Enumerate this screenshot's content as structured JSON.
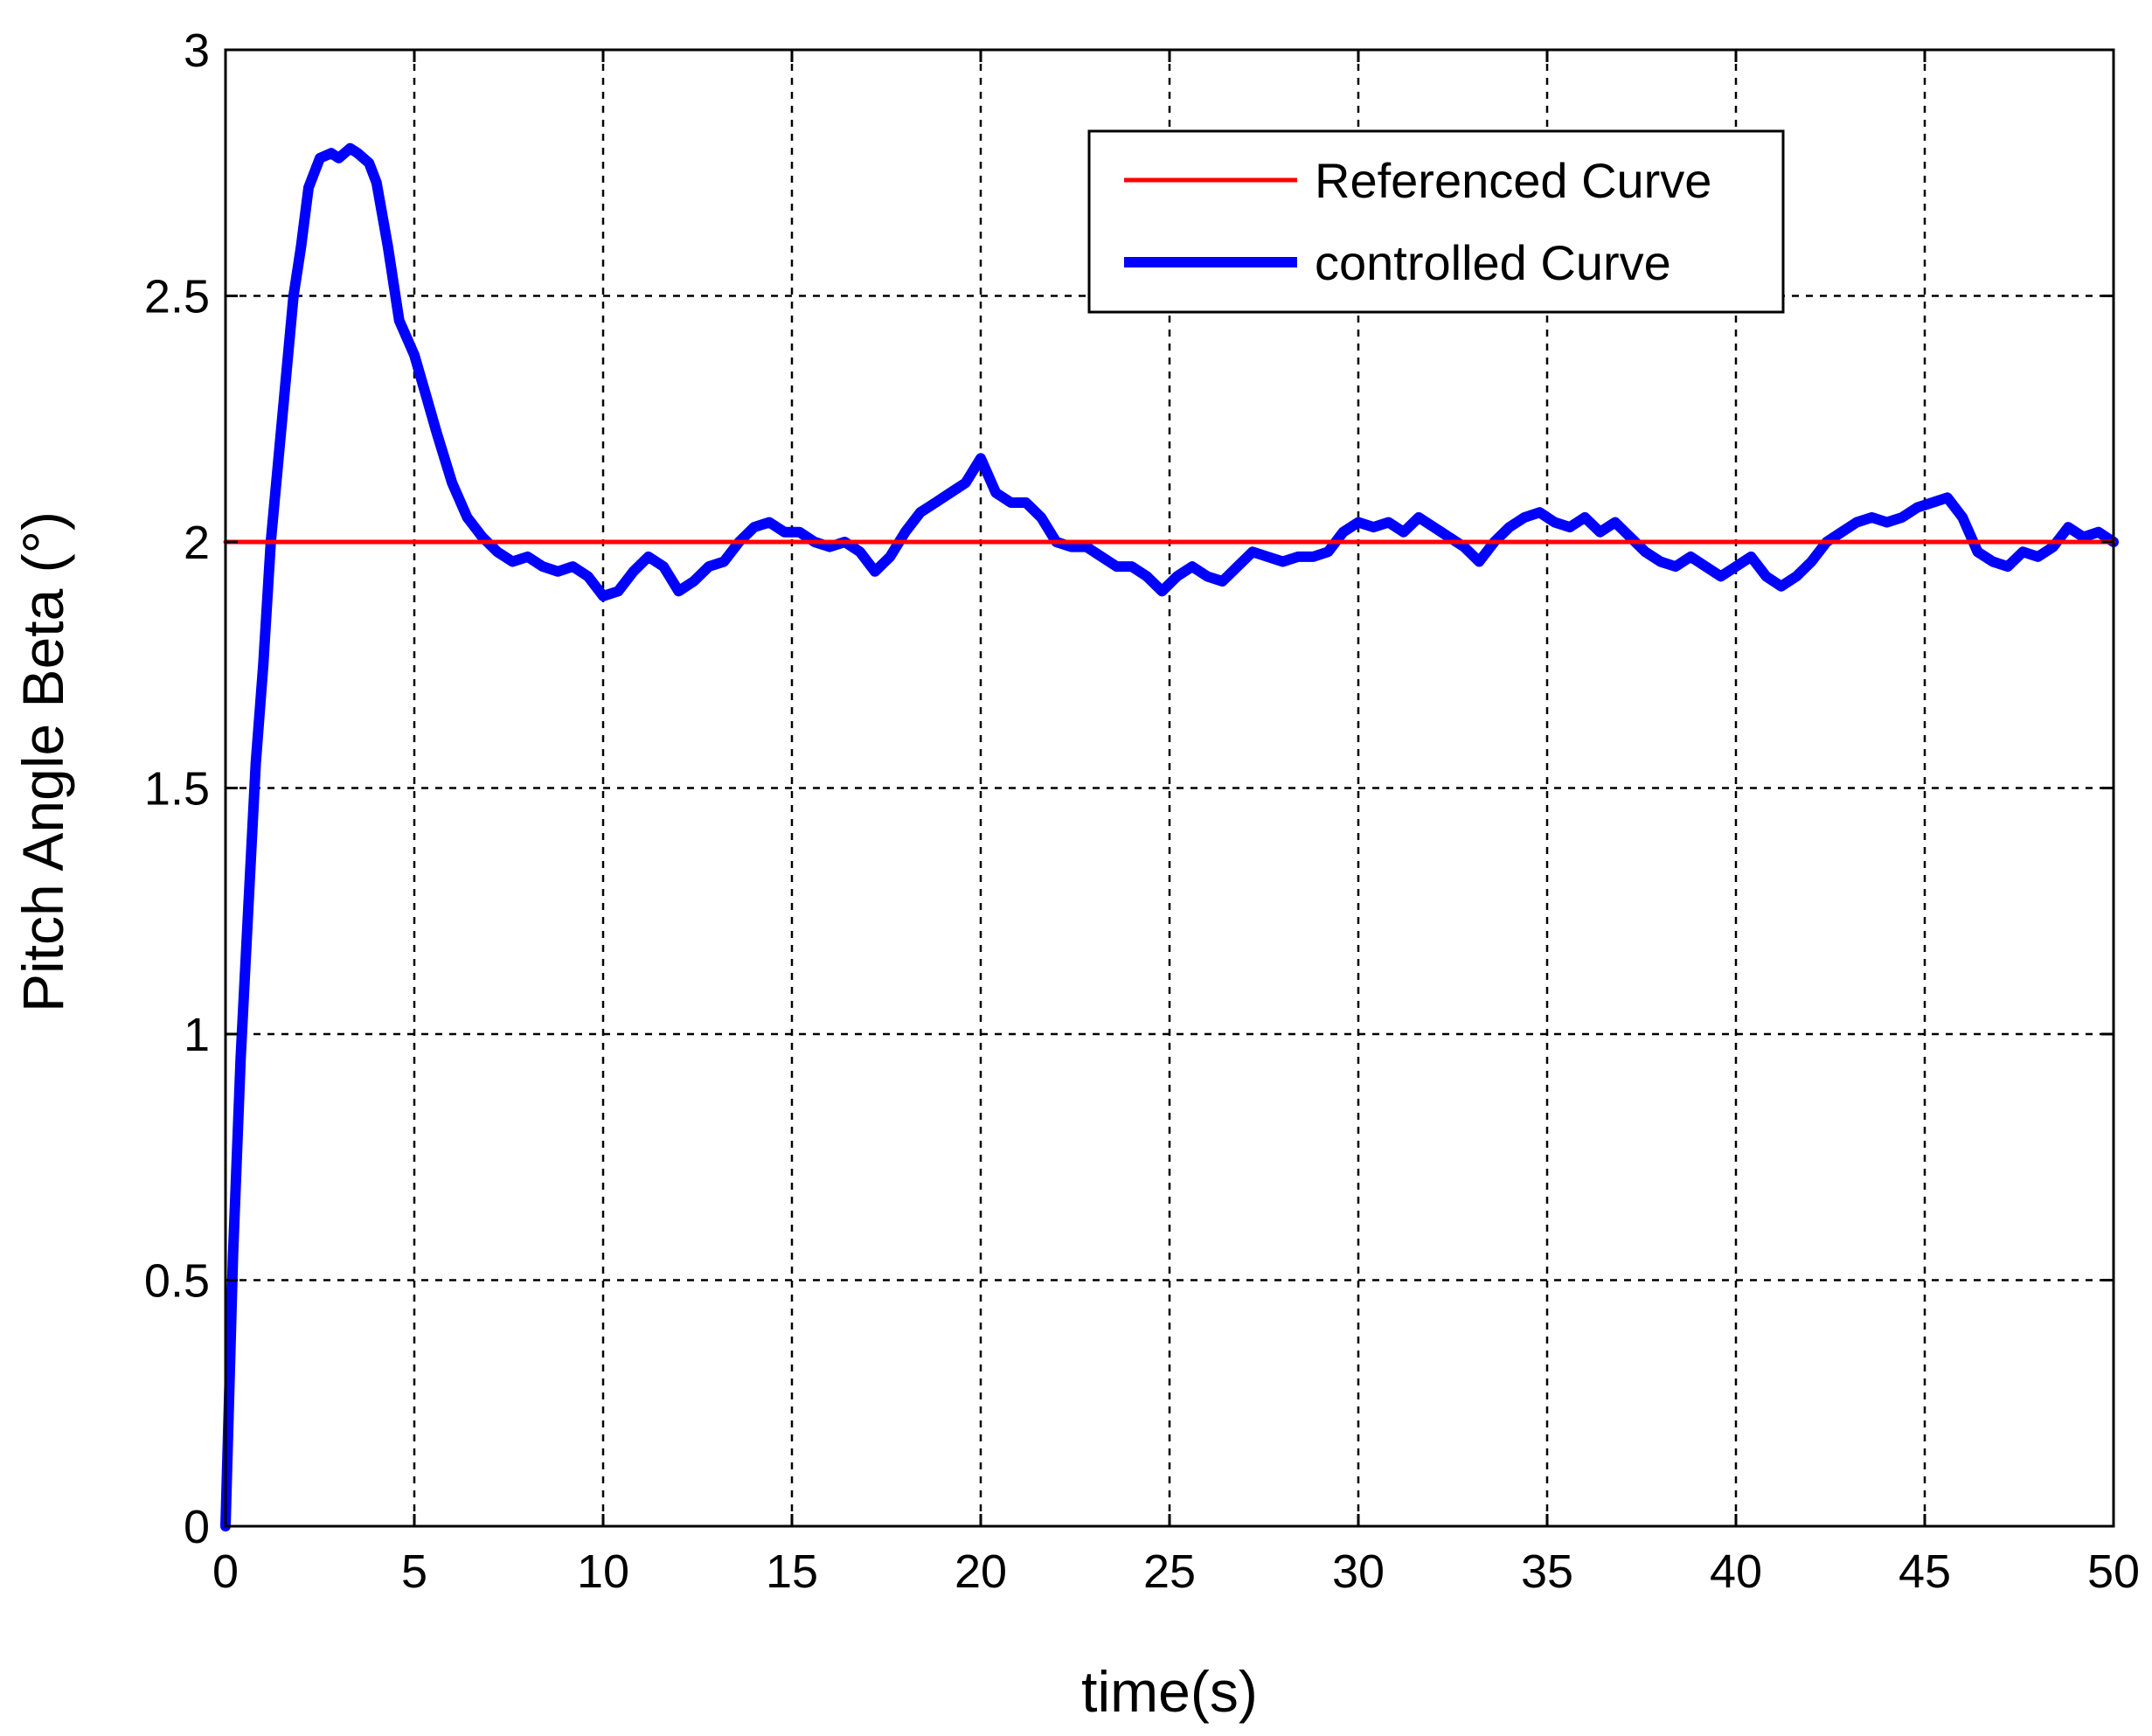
{
  "chart_data": {
    "type": "line",
    "xlabel": "time(s)",
    "ylabel": "Pitch Angle Beta (°)",
    "xlim": [
      0,
      50
    ],
    "ylim": [
      0,
      3
    ],
    "xticks": [
      "0",
      "5",
      "10",
      "15",
      "20",
      "25",
      "30",
      "35",
      "40",
      "45",
      "50"
    ],
    "yticks": [
      "0",
      "0.5",
      "1",
      "1.5",
      "2",
      "2.5",
      "3"
    ],
    "grid": true,
    "legend_position": "top-right",
    "series": [
      {
        "name": "Referenced Curve",
        "color": "#ff0000",
        "x": [
          0,
          50
        ],
        "y": [
          2.0,
          2.0
        ]
      },
      {
        "name": "controlled Curve",
        "color": "#0000ff",
        "x": [
          0,
          0.2,
          0.4,
          0.6,
          0.8,
          1.0,
          1.2,
          1.5,
          1.8,
          2.0,
          2.2,
          2.5,
          2.8,
          3.0,
          3.3,
          3.5,
          3.8,
          4.0,
          4.3,
          4.6,
          5.0,
          5.3,
          5.6,
          6.0,
          6.4,
          6.8,
          7.2,
          7.6,
          8.0,
          8.4,
          8.8,
          9.2,
          9.6,
          10.0,
          10.4,
          10.8,
          11.2,
          11.6,
          12.0,
          12.4,
          12.8,
          13.2,
          13.6,
          14.0,
          14.4,
          14.8,
          15.2,
          15.6,
          16.0,
          16.4,
          16.8,
          17.2,
          17.6,
          18.0,
          18.4,
          18.8,
          19.2,
          19.6,
          20.0,
          20.4,
          20.8,
          21.2,
          21.6,
          22.0,
          22.4,
          22.8,
          23.2,
          23.6,
          24.0,
          24.4,
          24.8,
          25.2,
          25.6,
          26.0,
          26.4,
          26.8,
          27.2,
          27.6,
          28.0,
          28.4,
          28.8,
          29.2,
          29.6,
          30.0,
          30.4,
          30.8,
          31.2,
          31.6,
          32.0,
          32.4,
          32.8,
          33.2,
          33.6,
          34.0,
          34.4,
          34.8,
          35.2,
          35.6,
          36.0,
          36.4,
          36.8,
          37.2,
          37.6,
          38.0,
          38.4,
          38.8,
          39.2,
          39.6,
          40.0,
          40.4,
          40.8,
          41.2,
          41.6,
          42.0,
          42.4,
          42.8,
          43.2,
          43.6,
          44.0,
          44.4,
          44.8,
          45.2,
          45.6,
          46.0,
          46.4,
          46.8,
          47.2,
          47.6,
          48.0,
          48.4,
          48.8,
          49.2,
          49.6,
          50.0
        ],
        "y": [
          0.0,
          0.55,
          0.95,
          1.25,
          1.55,
          1.75,
          2.0,
          2.25,
          2.5,
          2.6,
          2.72,
          2.78,
          2.79,
          2.78,
          2.8,
          2.79,
          2.77,
          2.73,
          2.6,
          2.45,
          2.38,
          2.3,
          2.22,
          2.12,
          2.05,
          2.01,
          1.98,
          1.96,
          1.97,
          1.95,
          1.94,
          1.95,
          1.93,
          1.89,
          1.9,
          1.94,
          1.97,
          1.95,
          1.9,
          1.92,
          1.95,
          1.96,
          2.0,
          2.03,
          2.04,
          2.02,
          2.02,
          2.0,
          1.99,
          2.0,
          1.98,
          1.94,
          1.97,
          2.02,
          2.06,
          2.08,
          2.1,
          2.12,
          2.17,
          2.1,
          2.08,
          2.08,
          2.05,
          2.0,
          1.99,
          1.99,
          1.97,
          1.95,
          1.95,
          1.93,
          1.9,
          1.93,
          1.95,
          1.93,
          1.92,
          1.95,
          1.98,
          1.97,
          1.96,
          1.97,
          1.97,
          1.98,
          2.02,
          2.04,
          2.03,
          2.04,
          2.02,
          2.05,
          2.03,
          2.01,
          1.99,
          1.96,
          2.0,
          2.03,
          2.05,
          2.06,
          2.04,
          2.03,
          2.05,
          2.02,
          2.04,
          2.01,
          1.98,
          1.96,
          1.95,
          1.97,
          1.95,
          1.93,
          1.95,
          1.97,
          1.93,
          1.91,
          1.93,
          1.96,
          2.0,
          2.02,
          2.04,
          2.05,
          2.04,
          2.05,
          2.07,
          2.08,
          2.09,
          2.05,
          1.98,
          1.96,
          1.95,
          1.98,
          1.97,
          1.99,
          2.03,
          2.01,
          2.02,
          2.0
        ]
      }
    ]
  }
}
